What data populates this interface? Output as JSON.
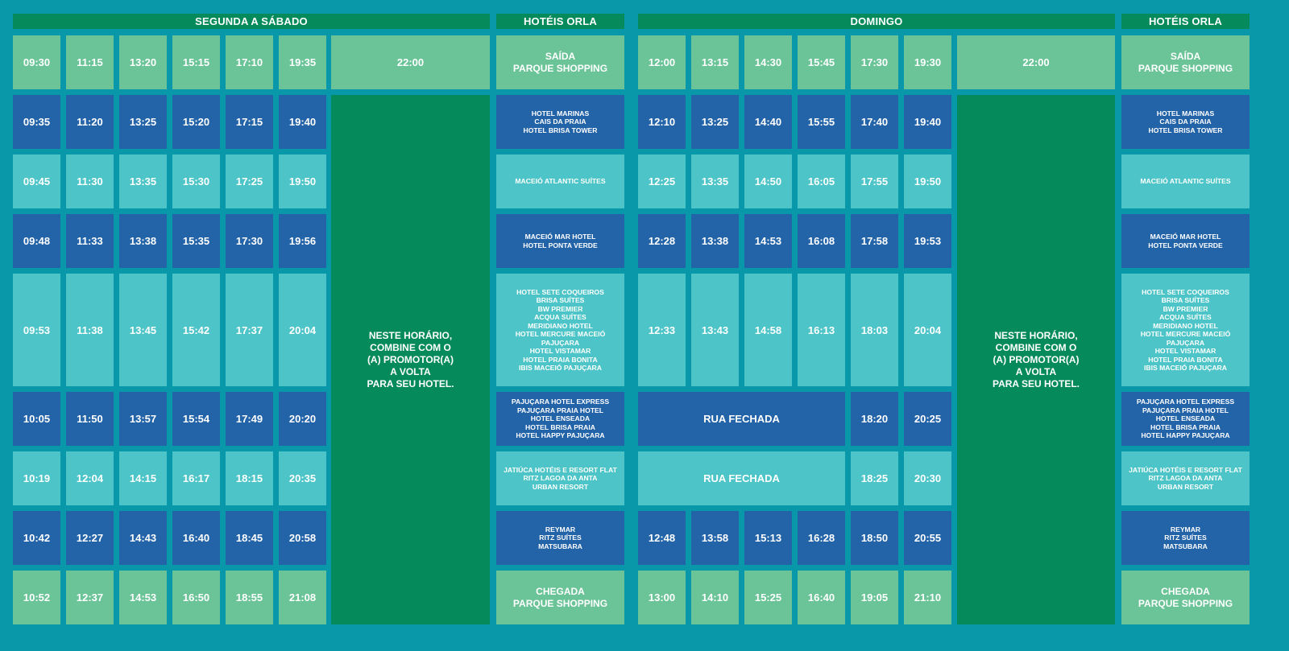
{
  "colors": {
    "background": "#0898aa",
    "header": "#058a5c",
    "terminal": "#6ac497",
    "dark": "#2363a8",
    "light": "#4cc4c8",
    "note": "#058a5c"
  },
  "sections": {
    "weekday": "SEGUNDA A SÁBADO",
    "sunday": "DOMINGO",
    "hotels": "HOTÉIS ORLA"
  },
  "note_text": "NESTE HORÁRIO,\nCOMBINE COM O\n(A) PROMOTOR(A)\nA VOLTA\nPARA SEU HOTEL.",
  "stops": [
    "SAÍDA\nPARQUE SHOPPING",
    "HOTEL MARINAS\nCAIS DA PRAIA\nHOTEL BRISA TOWER",
    "MACEIÓ ATLANTIC SUÍTES",
    "MACEIÓ MAR HOTEL\nHOTEL PONTA VERDE",
    "HOTEL SETE COQUEIROS\nBRISA SUÍTES\nBW PREMIER\nACQUA SUÍTES\nMERIDIANO HOTEL\nHOTEL MERCURE MACEIÓ\nPAJUÇARA\nHOTEL VISTAMAR\nHOTEL PRAIA BONITA\nIBIS MACEIÓ PAJUÇARA",
    "PAJUÇARA HOTEL EXPRESS\nPAJUÇARA PRAIA HOTEL\nHOTEL ENSEADA\nHOTEL BRISA PRAIA\nHOTEL HAPPY PAJUÇARA",
    "JATIÚCA HOTÉIS E RESORT FLAT\nRITZ LAGOA DA ANTA\nURBAN RESORT",
    "REYMAR\nRITZ SUÍTES\nMATSUBARA",
    "CHEGADA\nPARQUE SHOPPING"
  ],
  "weekday_times": [
    [
      "09:30",
      "11:15",
      "13:20",
      "15:15",
      "17:10",
      "19:35",
      "22:00"
    ],
    [
      "09:35",
      "11:20",
      "13:25",
      "15:20",
      "17:15",
      "19:40"
    ],
    [
      "09:45",
      "11:30",
      "13:35",
      "15:30",
      "17:25",
      "19:50"
    ],
    [
      "09:48",
      "11:33",
      "13:38",
      "15:35",
      "17:30",
      "19:56"
    ],
    [
      "09:53",
      "11:38",
      "13:45",
      "15:42",
      "17:37",
      "20:04"
    ],
    [
      "10:05",
      "11:50",
      "13:57",
      "15:54",
      "17:49",
      "20:20"
    ],
    [
      "10:19",
      "12:04",
      "14:15",
      "16:17",
      "18:15",
      "20:35"
    ],
    [
      "10:42",
      "12:27",
      "14:43",
      "16:40",
      "18:45",
      "20:58"
    ],
    [
      "10:52",
      "12:37",
      "14:53",
      "16:50",
      "18:55",
      "21:08"
    ]
  ],
  "sunday_times": [
    [
      "12:00",
      "13:15",
      "14:30",
      "15:45",
      "17:30",
      "19:30",
      "22:00"
    ],
    [
      "12:10",
      "13:25",
      "14:40",
      "15:55",
      "17:40",
      "19:40"
    ],
    [
      "12:25",
      "13:35",
      "14:50",
      "16:05",
      "17:55",
      "19:50"
    ],
    [
      "12:28",
      "13:38",
      "14:53",
      "16:08",
      "17:58",
      "19:53"
    ],
    [
      "12:33",
      "13:43",
      "14:58",
      "16:13",
      "18:03",
      "20:04"
    ],
    [
      "RUA FECHADA",
      "18:20",
      "20:25"
    ],
    [
      "RUA FECHADA",
      "18:25",
      "20:30"
    ],
    [
      "12:48",
      "13:58",
      "15:13",
      "16:28",
      "18:50",
      "20:55"
    ],
    [
      "13:00",
      "14:10",
      "15:25",
      "16:40",
      "19:05",
      "21:10"
    ]
  ]
}
